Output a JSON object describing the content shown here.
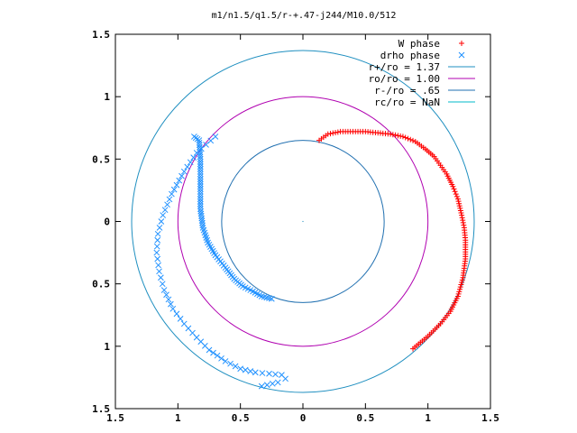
{
  "chart_data": {
    "type": "scatter",
    "title": "m1/n1.5/q1.5/r-+.47-j244/M10.0/512",
    "xlabel": "",
    "ylabel": "",
    "xlim": [
      -1.5,
      1.5
    ],
    "ylim": [
      -1.5,
      1.5
    ],
    "grid": false,
    "legend_position": "top-right",
    "x_ticks": [
      {
        "value": -1.5,
        "label": "1.5"
      },
      {
        "value": -1.0,
        "label": "1"
      },
      {
        "value": -0.5,
        "label": "0.5"
      },
      {
        "value": 0.0,
        "label": "0"
      },
      {
        "value": 0.5,
        "label": "0.5"
      },
      {
        "value": 1.0,
        "label": "1"
      },
      {
        "value": 1.5,
        "label": "1.5"
      }
    ],
    "y_ticks": [
      {
        "value": 1.5,
        "label": "1.5"
      },
      {
        "value": 1.0,
        "label": "1"
      },
      {
        "value": 0.5,
        "label": "0.5"
      },
      {
        "value": 0.0,
        "label": "0"
      },
      {
        "value": -0.5,
        "label": "0.5"
      },
      {
        "value": -1.0,
        "label": "1"
      },
      {
        "value": -1.5,
        "label": "1.5"
      }
    ],
    "series": [
      {
        "name": "W phase",
        "marker": "plus",
        "color": "#ff0000",
        "curve_x": [
          0.13,
          0.2,
          0.3,
          0.4,
          0.5,
          0.6,
          0.7,
          0.8,
          0.9,
          0.98,
          1.05,
          1.1,
          1.15,
          1.2,
          1.24,
          1.27,
          1.29,
          1.3,
          1.3,
          1.28,
          1.24,
          1.18,
          1.1,
          1.0,
          0.88
        ],
        "curve_y": [
          0.65,
          0.7,
          0.72,
          0.72,
          0.72,
          0.71,
          0.7,
          0.68,
          0.64,
          0.58,
          0.52,
          0.45,
          0.38,
          0.28,
          0.18,
          0.05,
          -0.05,
          -0.15,
          -0.3,
          -0.45,
          -0.6,
          -0.72,
          -0.82,
          -0.92,
          -1.02
        ]
      },
      {
        "name": "drho phase",
        "marker": "x",
        "color": "#1e90ff",
        "curve_x": [
          -0.7,
          -0.85,
          -0.95,
          -1.05,
          -1.12,
          -1.16,
          -1.17,
          -1.15,
          -1.11,
          -1.04,
          -0.95,
          -0.85,
          -0.75,
          -0.62,
          -0.5,
          -0.38,
          -0.27,
          -0.17,
          -0.14,
          -0.2,
          -0.33
        ],
        "curve_y": [
          0.68,
          0.55,
          0.4,
          0.22,
          0.05,
          -0.1,
          -0.25,
          -0.4,
          -0.55,
          -0.7,
          -0.82,
          -0.93,
          -1.03,
          -1.12,
          -1.18,
          -1.21,
          -1.22,
          -1.23,
          -1.26,
          -1.29,
          -1.32
        ],
        "inner_x": [
          -0.87,
          -0.83,
          -0.82,
          -0.82,
          -0.82,
          -0.8,
          -0.76,
          -0.7,
          -0.62,
          -0.55,
          -0.48,
          -0.4,
          -0.33,
          -0.25
        ],
        "inner_y": [
          0.68,
          0.65,
          0.5,
          0.3,
          0.1,
          -0.05,
          -0.17,
          -0.27,
          -0.37,
          -0.46,
          -0.52,
          -0.56,
          -0.6,
          -0.62
        ]
      },
      {
        "name": "r+/ro = 1.37",
        "type": "circle",
        "radius": 1.37,
        "color": "#1f8fc0"
      },
      {
        "name": "ro/ro = 1.00",
        "type": "circle",
        "radius": 1.0,
        "color": "#b000b0"
      },
      {
        "name": "r-/ro = .65",
        "type": "circle",
        "radius": 0.65,
        "color": "#1f6fb0"
      },
      {
        "name": "rc/ro = NaN",
        "type": "circle",
        "radius": null,
        "color": "#00b8c8"
      }
    ]
  }
}
